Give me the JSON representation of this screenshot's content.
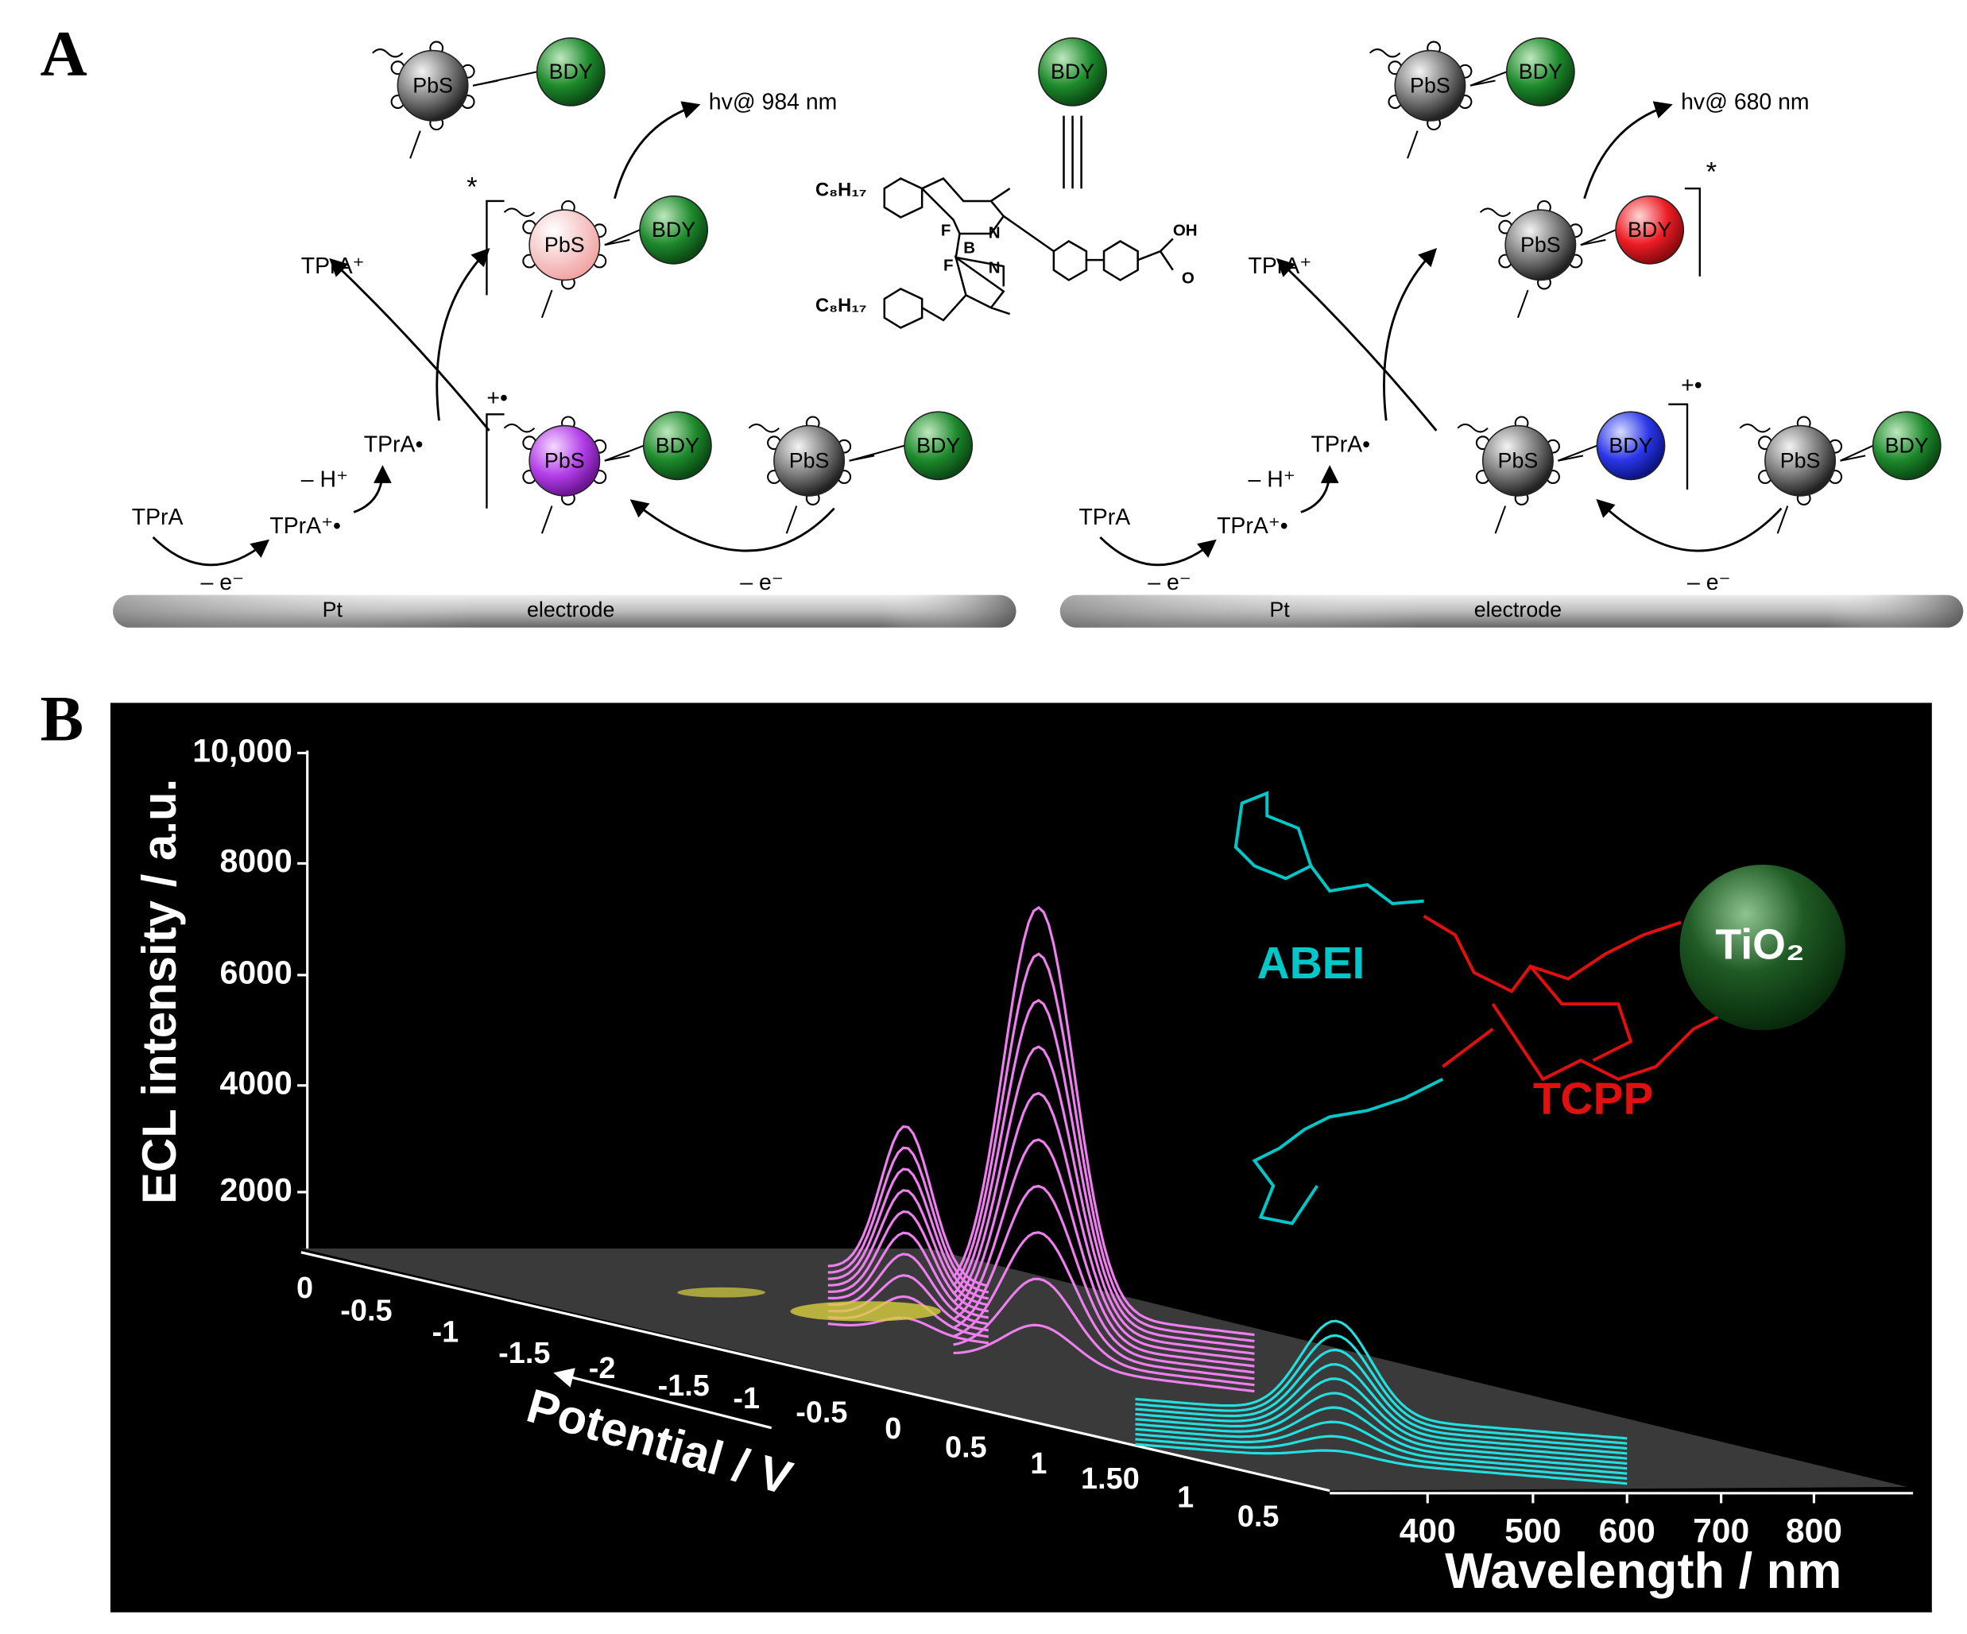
{
  "panel_a": {
    "label": "A",
    "left": {
      "particles": [
        {
          "core": "PbS",
          "dye": "BDY"
        },
        {
          "core": "PbS",
          "dye": "BDY"
        },
        {
          "core": "PbS",
          "dye": "BDY"
        },
        {
          "core": "PbS",
          "dye": "BDY"
        }
      ],
      "emission": "hv@ 984 nm",
      "excited": "*",
      "radical": "+•",
      "species": [
        "TPrA⁺",
        "TPrA•",
        "– H⁺",
        "TPrA⁺•",
        "TPrA"
      ],
      "electron_transfer": [
        "– e⁻",
        "– e⁻"
      ],
      "electrode": [
        "Pt",
        "electrode"
      ]
    },
    "center": {
      "dye": "BDY",
      "structure": [
        "C₈H₁₇",
        "C₈H₁₇",
        "F",
        "F",
        "B",
        "N",
        "N",
        "OH",
        "O"
      ]
    },
    "right": {
      "particles": [
        {
          "core": "PbS",
          "dye": "BDY"
        },
        {
          "core": "PbS",
          "dye": "BDY"
        },
        {
          "core": "PbS",
          "dye": "BDY"
        },
        {
          "core": "PbS",
          "dye": "BDY"
        }
      ],
      "emission": "hv@ 680 nm",
      "excited": "*",
      "radical": "+•",
      "species": [
        "TPrA⁺",
        "TPrA•",
        "– H⁺",
        "TPrA⁺•",
        "TPrA"
      ],
      "electron_transfer": [
        "– e⁻",
        "– e⁻"
      ],
      "electrode": [
        "Pt",
        "electrode"
      ]
    }
  },
  "panel_b": {
    "label": "B",
    "y_axis_title": "ECL intensity / a.u.",
    "y_ticks": [
      "10,000",
      "8000",
      "6000",
      "4000",
      "2000"
    ],
    "potential_ticks": [
      "0",
      "-0.5",
      "-1",
      "-1.5",
      "-2",
      "-1.5",
      "-1",
      "-0.5",
      "0",
      "0.5",
      "1",
      "1.50",
      "1",
      "0.5"
    ],
    "potential_title": "Potential / V",
    "wavelength_ticks": [
      "400",
      "500",
      "600",
      "700",
      "800"
    ],
    "wavelength_title": "Wavelength / nm",
    "labels": [
      "ABEI",
      "TCPP",
      "TiO₂"
    ]
  }
}
